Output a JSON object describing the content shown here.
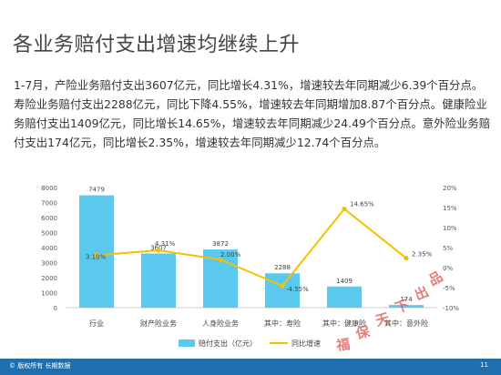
{
  "title": "各业务赔付支出增速均继续上升",
  "paragraph": "1-7月，产险业务赔付支出3607亿元，同比增长4.31%，增速较去年同期减少6.39个百分点。寿险业务赔付支出2288亿元，同比下降4.55%，增速较去年同期增加8.87个百分点。健康险业务赔付支出1409亿元，同比增长14.65%，增速较去年同期减少24.49个百分点。意外险业务赔付支出174亿元，同比增长2.35%，增速较去年同期减少12.74个百分点。",
  "footer": {
    "copyright": "© 版权所有 长期数据",
    "page": "11"
  },
  "watermark": {
    "chars": [
      "福",
      "保",
      "天",
      "下",
      "出",
      "品"
    ],
    "color": "#d9534f"
  },
  "colors": {
    "bar": "#5bc8ee",
    "line": "#f5c000",
    "footer": "#1f6fae"
  },
  "chart_data": {
    "type": "bar",
    "categories": [
      "行业",
      "财产险业务",
      "人身险业务",
      "其中：寿险",
      "其中：健康险",
      "其中：意外险"
    ],
    "series": [
      {
        "name": "赔付支出（亿元）",
        "type": "bar",
        "axis": "left",
        "values": [
          7479,
          3607,
          3872,
          2288,
          1409,
          174
        ],
        "labels": [
          "7479",
          "3607",
          "3872",
          "2288",
          "1409",
          "174"
        ]
      },
      {
        "name": "同比增速",
        "type": "line",
        "axis": "right",
        "values": [
          3.1,
          4.31,
          2.0,
          -4.55,
          14.65,
          2.35
        ],
        "labels": [
          "3.10%",
          "4.31%",
          "2.00%",
          "-4.55%",
          "14.65%",
          "2.35%"
        ]
      }
    ],
    "left_axis": {
      "min": 0,
      "max": 8000,
      "step": 1000,
      "ticks": [
        "0",
        "1000",
        "2000",
        "3000",
        "4000",
        "5000",
        "6000",
        "7000",
        "8000"
      ]
    },
    "right_axis": {
      "min": -10,
      "max": 20,
      "step": 5,
      "ticks": [
        "-10%",
        "-5%",
        "0%",
        "5%",
        "10%",
        "15%",
        "20%"
      ]
    },
    "legend_position": "bottom",
    "grid": false
  }
}
